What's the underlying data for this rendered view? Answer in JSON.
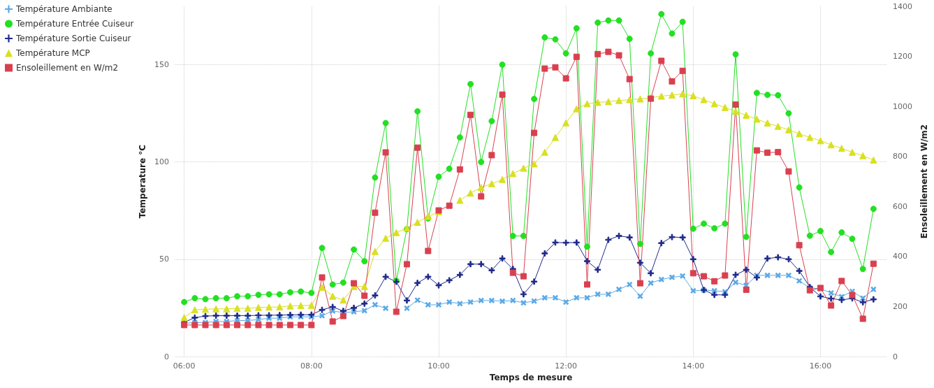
{
  "chart_data": {
    "type": "line",
    "xlabel": "Temps de mesure",
    "ylabel": "Temperature °C",
    "y2label": "Ensoleillement en W/m2",
    "x": [
      6,
      6.1667,
      6.3333,
      6.5,
      6.6667,
      6.8333,
      7,
      7.1667,
      7.3333,
      7.5,
      7.6667,
      7.8333,
      8,
      8.1667,
      8.3333,
      8.5,
      8.6667,
      8.8333,
      9,
      9.1667,
      9.3333,
      9.5,
      9.6667,
      9.8333,
      10,
      10.1667,
      10.3333,
      10.5,
      10.6667,
      10.8333,
      11,
      11.1667,
      11.3333,
      11.5,
      11.6667,
      11.8333,
      12,
      12.1667,
      12.3333,
      12.5,
      12.6667,
      12.8333,
      13,
      13.1667,
      13.3333,
      13.5,
      13.6667,
      13.8333,
      14,
      14.1667,
      14.3333,
      14.5,
      14.6667,
      14.8333,
      15,
      15.1667,
      15.3333,
      15.5,
      15.6667,
      15.8333,
      16,
      16.1667,
      16.3333,
      16.5,
      16.6667,
      16.8333
    ],
    "xlim": [
      5.85,
      17.05
    ],
    "xticks": [
      {
        "value": 6,
        "label": "06:00"
      },
      {
        "value": 8,
        "label": "08:00"
      },
      {
        "value": 10,
        "label": "10:00"
      },
      {
        "value": 12,
        "label": "12:00"
      },
      {
        "value": 14,
        "label": "14:00"
      },
      {
        "value": 16,
        "label": "16:00"
      }
    ],
    "ylim": [
      0,
      180
    ],
    "yticks": [
      0,
      50,
      100,
      150
    ],
    "y2lim": [
      0,
      1400
    ],
    "y2ticks": [
      0,
      200,
      400,
      600,
      800,
      1000,
      1200,
      1400
    ],
    "grid": true,
    "legend": "top left",
    "series": [
      {
        "name": "Température Ambiante",
        "color": "#5aa9e6",
        "marker": "cross",
        "values": [
          17,
          17.5,
          17.5,
          18,
          18,
          18.5,
          18.5,
          19,
          19.7,
          19.7,
          20.4,
          20.4,
          20.4,
          21,
          23.4,
          22.6,
          23,
          23.6,
          26.6,
          24.8,
          null,
          24.8,
          29,
          26.6,
          26.6,
          28,
          27.2,
          28,
          28.8,
          28.8,
          28.4,
          28.8,
          27.6,
          28.5,
          30.2,
          30.2,
          28,
          30.2,
          30.2,
          32,
          32,
          34.5,
          37,
          31,
          37.8,
          39.6,
          40.7,
          41.4,
          33.8,
          34.2,
          33.8,
          33.3,
          38.1,
          36.6,
          41.7,
          41.7,
          41.7,
          41.7,
          38.9,
          35.3,
          34.8,
          32.7,
          30.8,
          33.5,
          30,
          34.5
        ]
      },
      {
        "name": "Température Entrée Cuiseur",
        "color": "#22e022",
        "marker": "circle",
        "values": [
          28,
          30,
          29.5,
          30,
          30,
          31,
          31,
          31.7,
          32,
          32,
          33,
          33.4,
          32.7,
          55.8,
          37,
          38,
          55,
          49,
          92,
          120,
          39,
          65.5,
          126,
          71,
          92.4,
          96.5,
          112.6,
          140,
          100,
          121,
          150,
          62,
          62,
          132.4,
          164,
          163,
          155.8,
          168.7,
          56.5,
          171.6,
          172.7,
          172.7,
          163.3,
          57.9,
          155.8,
          176,
          166,
          172,
          65.7,
          68.3,
          65.9,
          68.3,
          155.3,
          61.5,
          135.5,
          134.5,
          134.3,
          125,
          86.9,
          62.1,
          64.5,
          53.7,
          63.8,
          60.5,
          45,
          75.9
        ]
      },
      {
        "name": "Température Sortie Cuiseur",
        "color": "#1f2a8a",
        "marker": "plus",
        "values": [
          17.6,
          20,
          20.8,
          21,
          21,
          21,
          21,
          21.2,
          21.2,
          21.3,
          21.4,
          21.5,
          21.5,
          24,
          25.5,
          23.4,
          25,
          27.2,
          31.4,
          41,
          38.4,
          28.8,
          37.8,
          41,
          36.6,
          39.2,
          42,
          47.5,
          47.5,
          44.3,
          50.4,
          45,
          32,
          38.5,
          53,
          58.6,
          58.5,
          58.6,
          49,
          44.6,
          60,
          62,
          61.2,
          48.2,
          42.8,
          58.3,
          61.4,
          61.2,
          50,
          34.2,
          31.7,
          31.7,
          42,
          44.6,
          40.6,
          50.4,
          51,
          50,
          44,
          35.7,
          30.9,
          29.8,
          29.1,
          29.9,
          27.9,
          29.4
        ]
      },
      {
        "name": "Température MCP",
        "color": "#d9e021",
        "marker": "triangle",
        "values": [
          20,
          24,
          24.3,
          24.5,
          24.5,
          24.8,
          24.8,
          25.2,
          25.4,
          25.5,
          26,
          26.2,
          26.3,
          35.6,
          31,
          29,
          36,
          36,
          54,
          60.8,
          63.7,
          66,
          69,
          72,
          74.4,
          null,
          80.3,
          84,
          86.9,
          88.8,
          91,
          94,
          96.8,
          99,
          105,
          112.6,
          120.1,
          127.3,
          129.9,
          130.6,
          131,
          131.6,
          132,
          132.4,
          133,
          133.8,
          134.4,
          135,
          134,
          132,
          129.9,
          128,
          126,
          124,
          122,
          120,
          118.3,
          116.5,
          114.5,
          112.6,
          110.9,
          108.8,
          107,
          105,
          103.2,
          101
        ]
      },
      {
        "name": "Ensoleillement en W/m2",
        "color": "#d9404f",
        "marker": "square",
        "axis": "y2",
        "values": [
          126,
          126,
          126,
          126,
          126,
          126,
          126,
          126,
          126,
          126,
          126,
          126,
          126,
          316,
          140,
          162,
          293,
          243,
          575,
          816,
          179,
          369,
          835,
          422,
          584,
          603,
          748,
          966,
          640,
          805,
          1047,
          335,
          321,
          894,
          1151,
          1156,
          1112,
          1198,
          288,
          1209,
          1218,
          1204,
          1109,
          293,
          1031,
          1182,
          1100,
          1142,
          333,
          321,
          301,
          324,
          1007,
          267,
          824,
          815,
          817,
          740,
          445,
          265,
          274,
          204,
          302,
          246,
          151,
          371
        ]
      }
    ]
  }
}
